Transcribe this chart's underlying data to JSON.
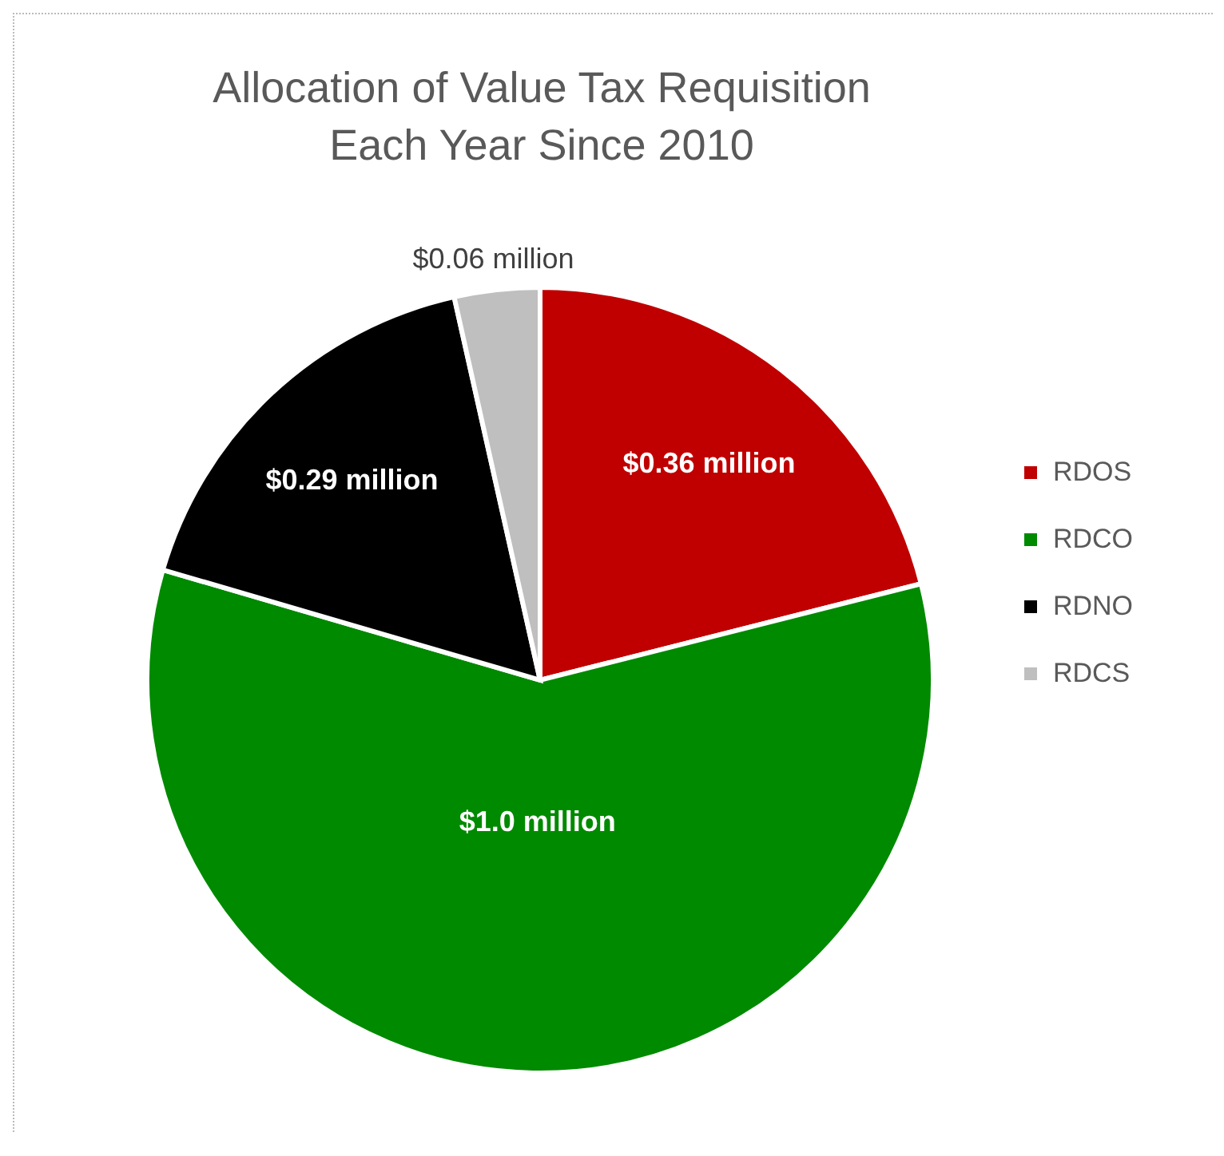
{
  "chart_data": {
    "type": "pie",
    "title": "Allocation of Value Tax Requisition\nEach Year Since 2010",
    "categories": [
      "RDOS",
      "RDCO",
      "RDNO",
      "RDCS"
    ],
    "values": [
      0.36,
      1.0,
      0.29,
      0.06
    ],
    "colors": [
      "#c00000",
      "#008a00",
      "#000000",
      "#bfbfbf"
    ],
    "value_labels": [
      "$0.36 million",
      "$1.0 million",
      "$0.29 million",
      "$0.06 million"
    ],
    "legend": "right"
  }
}
